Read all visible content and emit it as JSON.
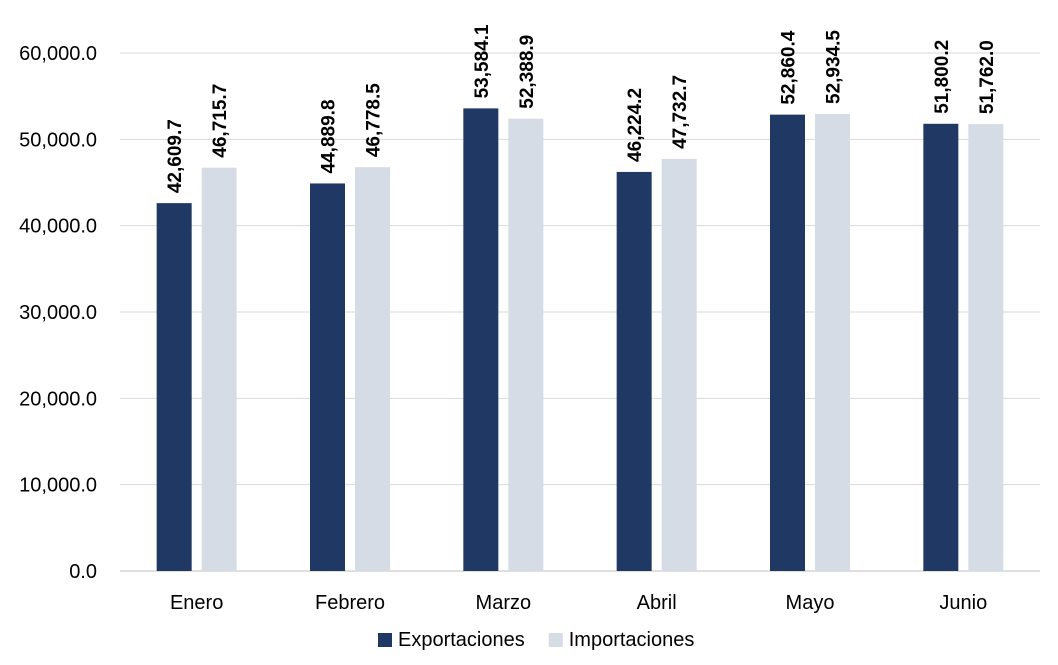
{
  "chart_data": {
    "type": "bar",
    "title": "",
    "xlabel": "",
    "ylabel": "",
    "categories": [
      "Enero",
      "Febrero",
      "Marzo",
      "Abril",
      "Mayo",
      "Junio"
    ],
    "series": [
      {
        "name": "Exportaciones",
        "color": "#203864",
        "values": [
          42609.7,
          44889.8,
          53584.1,
          46224.2,
          52860.4,
          51800.2
        ],
        "labels": [
          "42,609.7",
          "44,889.8",
          "53,584.1",
          "46,224.2",
          "52,860.4",
          "51,800.2"
        ]
      },
      {
        "name": "Importaciones",
        "color": "#d6dce5",
        "values": [
          46715.7,
          46778.5,
          52388.9,
          47732.7,
          52934.5,
          51762.0
        ],
        "labels": [
          "46,715.7",
          "46,778.5",
          "52,388.9",
          "47,732.7",
          "52,934.5",
          "51,762.0"
        ]
      }
    ],
    "ylim": [
      0,
      60000
    ],
    "yticks": [
      0,
      10000,
      20000,
      30000,
      40000,
      50000,
      60000
    ],
    "ytick_labels": [
      "0.0",
      "10,000.0",
      "20,000.0",
      "30,000.0",
      "40,000.0",
      "50,000.0",
      "60,000.0"
    ],
    "grid": true,
    "legend_position": "bottom-center"
  }
}
